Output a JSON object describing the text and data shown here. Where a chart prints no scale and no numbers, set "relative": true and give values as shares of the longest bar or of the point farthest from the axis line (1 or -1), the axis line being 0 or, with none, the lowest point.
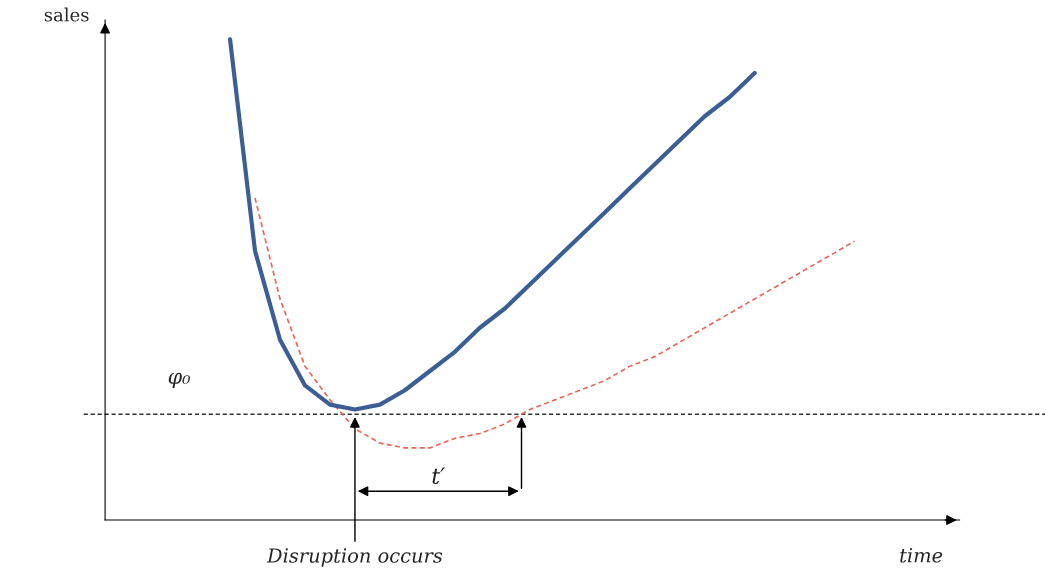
{
  "chart_data": {
    "type": "line",
    "relative": true,
    "xlabel": "time",
    "ylabel": "sales",
    "categories": [
      null,
      null,
      null,
      null,
      null,
      null,
      null,
      null,
      null,
      null,
      null,
      null,
      null,
      null,
      null,
      null,
      null,
      null,
      null,
      null,
      null,
      null,
      null,
      null,
      null,
      null,
      null,
      null,
      null,
      null,
      null,
      null,
      null,
      null,
      null
    ],
    "series": [
      {
        "color": "#3b5e95",
        "line_style": "solid",
        "values": [
          null,
          null,
          null,
          null,
          null,
          1.0,
          0.56,
          0.375,
          0.28,
          0.24,
          0.23,
          0.24,
          0.27,
          0.31,
          0.35,
          0.4,
          0.44,
          0.49,
          0.54,
          0.59,
          0.64,
          0.69,
          0.74,
          0.79,
          0.84,
          0.88,
          0.93,
          null,
          null,
          null,
          null,
          null,
          null,
          null,
          null
        ]
      },
      {
        "color": "#e8675a",
        "line_style": "dashed",
        "values": [
          null,
          null,
          null,
          null,
          null,
          null,
          0.67,
          0.46,
          0.32,
          0.25,
          0.19,
          0.16,
          0.15,
          0.15,
          0.17,
          0.18,
          0.2,
          0.23,
          0.25,
          0.27,
          0.29,
          0.32,
          0.34,
          0.37,
          0.4,
          0.43,
          0.46,
          0.49,
          0.52,
          0.55,
          0.58,
          null,
          null,
          null,
          null
        ]
      }
    ],
    "ref_lines": [
      {
        "axis": "y",
        "value": 0.22,
        "label": "φ₀",
        "color": "#333333",
        "line_style": "dashed"
      }
    ],
    "annotations": [
      "Disruption occurs",
      "t′"
    ],
    "marker": "none",
    "grid": false,
    "legend": false
  }
}
